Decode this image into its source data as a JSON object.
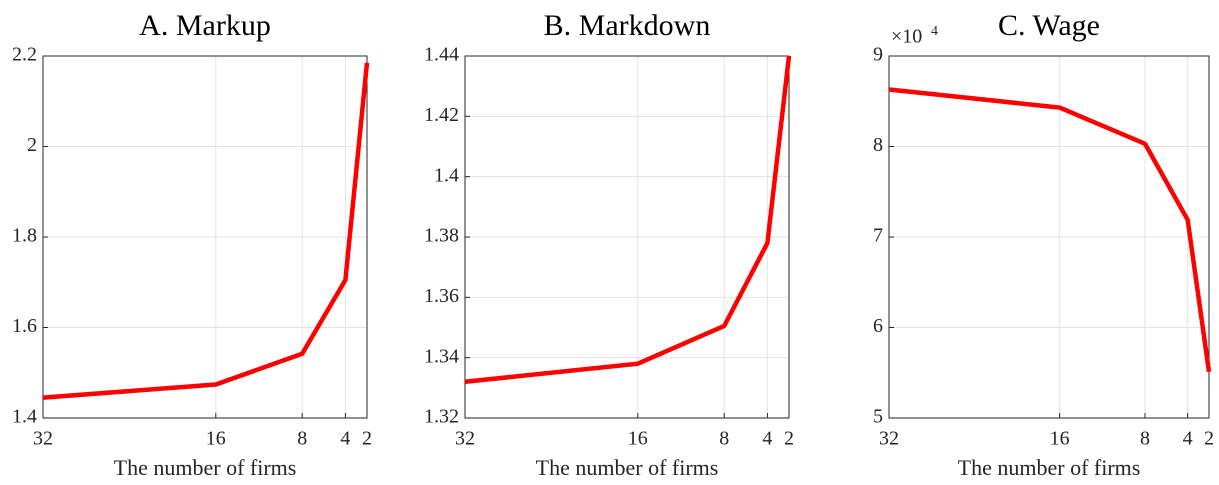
{
  "chart_data": [
    {
      "type": "line",
      "title": "A. Markup",
      "x_label": "The number of firms",
      "x": [
        32,
        16,
        8,
        4,
        2
      ],
      "values": [
        1.445,
        1.474,
        1.542,
        1.705,
        2.185
      ],
      "color": "#ff0000",
      "xlim": [
        32,
        2
      ],
      "xticks": [
        32,
        16,
        8,
        4,
        2
      ],
      "ylim": [
        1.4,
        2.2
      ],
      "yticks": [
        1.4,
        1.6,
        1.8,
        2,
        2.2
      ],
      "grid": true
    },
    {
      "type": "line",
      "title": "B. Markdown",
      "x_label": "The number of firms",
      "x": [
        32,
        16,
        8,
        4,
        2
      ],
      "values": [
        1.332,
        1.338,
        1.3505,
        1.378,
        1.44
      ],
      "color": "#ff0000",
      "xlim": [
        32,
        2
      ],
      "xticks": [
        32,
        16,
        8,
        4,
        2
      ],
      "ylim": [
        1.32,
        1.44
      ],
      "yticks": [
        1.32,
        1.34,
        1.36,
        1.38,
        1.4,
        1.42,
        1.44
      ],
      "grid": true
    },
    {
      "type": "line",
      "title": "C. Wage",
      "x_label": "The number of firms",
      "y_multiplier": "×10",
      "y_multiplier_exponent": "4",
      "x": [
        32,
        16,
        8,
        4,
        2
      ],
      "values": [
        86300,
        84300,
        80300,
        71900,
        55100
      ],
      "color": "#ff0000",
      "xlim": [
        32,
        2
      ],
      "xticks": [
        32,
        16,
        8,
        4,
        2
      ],
      "ylim": [
        50000,
        90000
      ],
      "yticks": [
        {
          "value": 50000,
          "label": "5"
        },
        {
          "value": 60000,
          "label": "6"
        },
        {
          "value": 70000,
          "label": "7"
        },
        {
          "value": 80000,
          "label": "8"
        },
        {
          "value": 90000,
          "label": "9"
        }
      ],
      "grid": true
    }
  ]
}
